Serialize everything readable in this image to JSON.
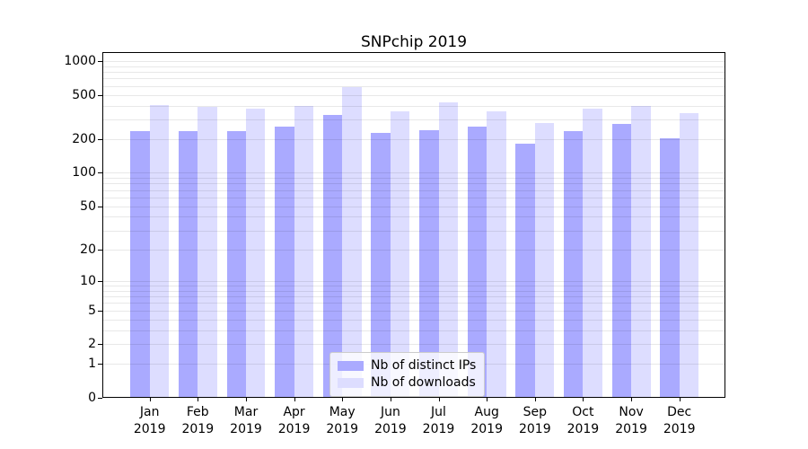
{
  "chart_data": {
    "type": "bar",
    "title": "SNPchip 2019",
    "x_tick_top": [
      "Jan",
      "Feb",
      "Mar",
      "Apr",
      "May",
      "Jun",
      "Jul",
      "Aug",
      "Sep",
      "Oct",
      "Nov",
      "Dec"
    ],
    "x_tick_bottom": "2019",
    "series": [
      {
        "name": "Nb of distinct IPs",
        "color": "#aaaaff",
        "values": [
          238,
          238,
          238,
          262,
          330,
          229,
          243,
          262,
          181,
          236,
          272,
          206
        ]
      },
      {
        "name": "Nb of downloads",
        "color": "#ddddff",
        "values": [
          405,
          392,
          376,
          400,
          580,
          355,
          430,
          358,
          282,
          378,
          396,
          341
        ]
      }
    ],
    "yscale": "log1p",
    "ylim": [
      0,
      1200
    ],
    "yticks": [
      1000,
      500,
      200,
      100,
      50,
      20,
      10,
      5,
      2,
      1,
      0
    ],
    "gridline_values": [
      1,
      2,
      3,
      4,
      5,
      6,
      7,
      8,
      9,
      10,
      20,
      30,
      40,
      50,
      60,
      70,
      80,
      90,
      100,
      200,
      300,
      400,
      500,
      600,
      700,
      800,
      900,
      1000
    ],
    "legend_position": "lower center",
    "grid": true,
    "background": "#ffffff"
  }
}
